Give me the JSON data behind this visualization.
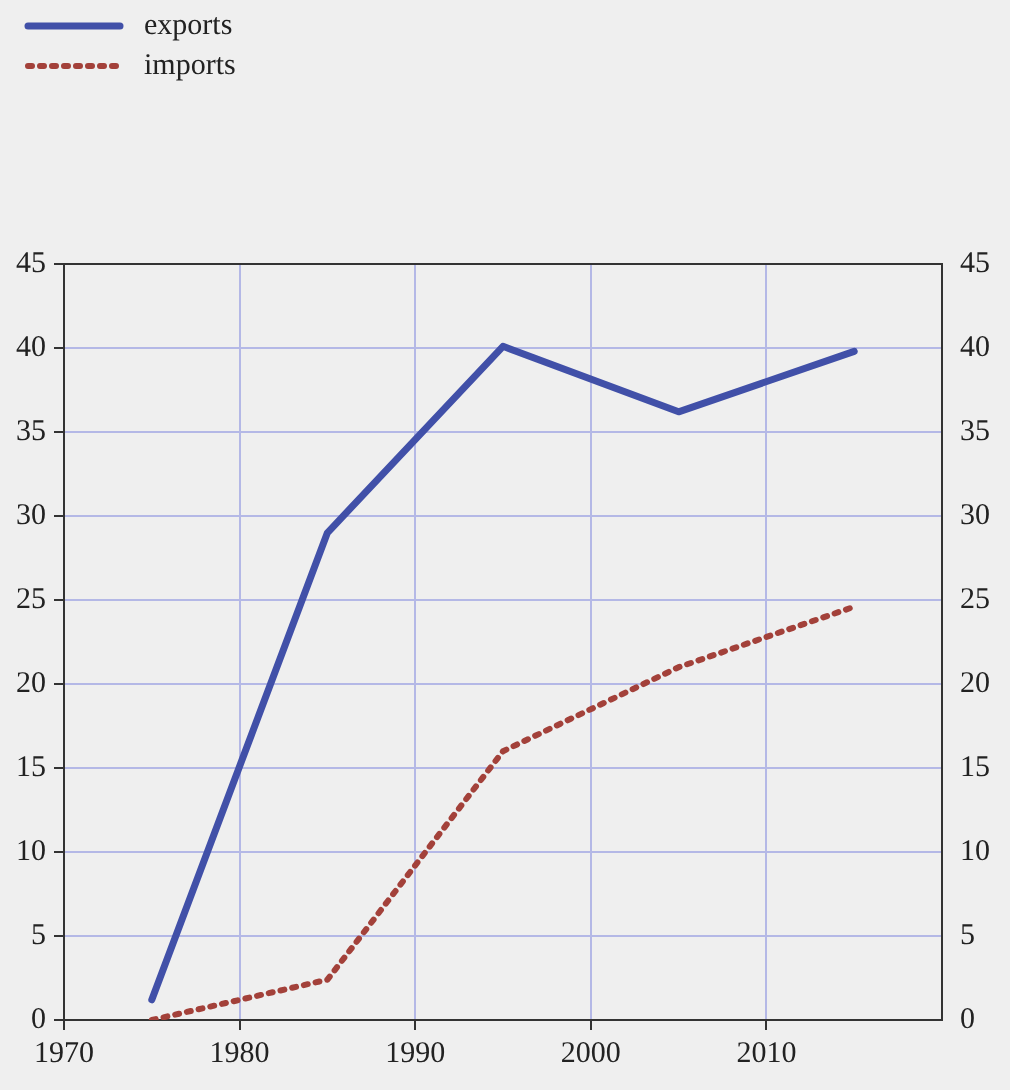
{
  "chart_data": {
    "type": "line",
    "x": [
      1975,
      1985,
      1995,
      2005,
      2015
    ],
    "series": [
      {
        "name": "exports",
        "color": "#4150a8",
        "values": [
          1.2,
          29,
          40.1,
          36.2,
          39.8
        ],
        "line_style": "solid"
      },
      {
        "name": "imports",
        "color": "#a3413a",
        "values": [
          0,
          2.4,
          16,
          21,
          24.6
        ],
        "line_style": "dotted"
      }
    ],
    "xlim": [
      1970,
      2020
    ],
    "xticks": [
      1970,
      1980,
      1990,
      2000,
      2010
    ],
    "ylim": [
      0,
      45
    ],
    "yticks": [
      0,
      5,
      10,
      15,
      20,
      25,
      30,
      35,
      40,
      45
    ],
    "y2lim": [
      0,
      45
    ],
    "y2ticks": [
      0,
      5,
      10,
      15,
      20,
      25,
      30,
      35,
      40,
      45
    ],
    "grid": true,
    "legend": "top left",
    "marker": "none"
  }
}
